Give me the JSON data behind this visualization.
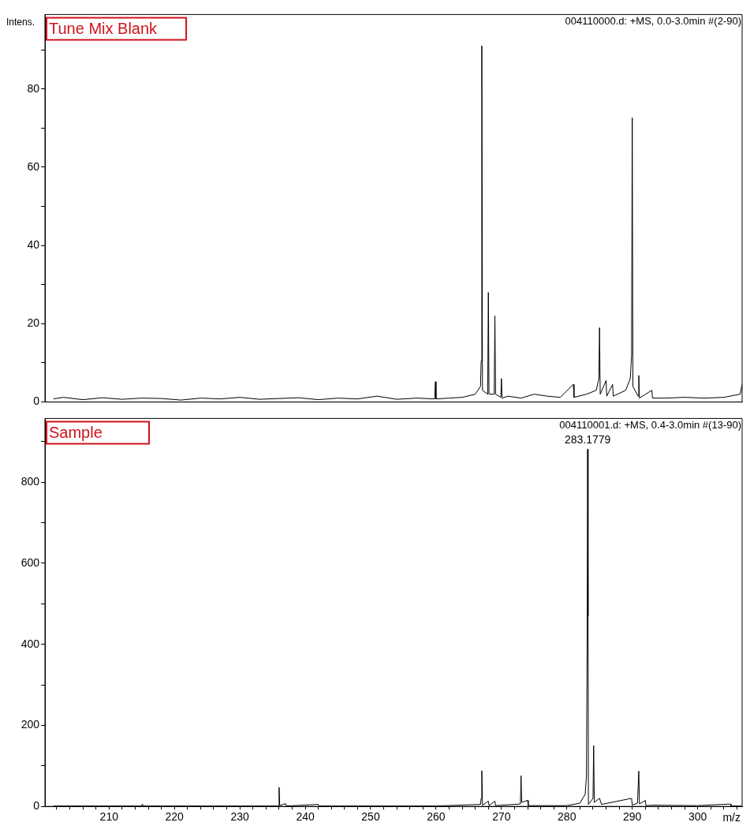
{
  "chart_data": [
    {
      "type": "line",
      "title": "Tune Mix Blank",
      "subtitle": "004110000.d: +MS, 0.0-3.0min #(2-90)",
      "ylabel": "Intens.",
      "xlim": [
        200.2,
        306.8
      ],
      "ylim": [
        0,
        99
      ],
      "yticks": [
        0,
        {
          "value": 10,
          "label": null
        },
        20,
        {
          "value": 30,
          "label": null
        },
        40,
        {
          "value": 50,
          "label": null
        },
        60,
        {
          "value": 70,
          "label": null
        },
        80,
        {
          "value": 90,
          "label": null
        }
      ],
      "tick_labels": "y",
      "legend": false,
      "marker": "none",
      "line_style": "solid",
      "series": [
        {
          "color": "#000000",
          "x": [
            201.5,
            203,
            206,
            209,
            212,
            215,
            218,
            221,
            224,
            227,
            230,
            233,
            236,
            239,
            242,
            245,
            248,
            251,
            254,
            257,
            259.8,
            259.9,
            260.0,
            262,
            264,
            266,
            266.8,
            266.9,
            267.0,
            267.1,
            267.9,
            268.0,
            268.1,
            268.9,
            269.0,
            269.1,
            269.9,
            270.0,
            270.1,
            271,
            273,
            275,
            277,
            279,
            281,
            281.1,
            283,
            284.5,
            284.9,
            285.0,
            285.1,
            286,
            286.1,
            287,
            287.1,
            289,
            289.7,
            289.9,
            290.0,
            290.1,
            290.9,
            291.0,
            291.1,
            293,
            293.1,
            295,
            298,
            301,
            304,
            306.5,
            306.8
          ],
          "values": [
            0.8,
            1.2,
            0.6,
            1.1,
            0.7,
            1.0,
            0.9,
            0.5,
            1.0,
            0.8,
            1.2,
            0.7,
            0.9,
            1.1,
            0.6,
            1.0,
            0.8,
            1.5,
            0.7,
            1.0,
            0.8,
            5.2,
            0.8,
            1.0,
            1.2,
            2,
            4,
            10.5,
            91,
            3,
            2,
            28,
            2,
            2,
            22,
            2,
            1.2,
            6,
            1,
            1.5,
            1.0,
            2.0,
            1.5,
            1.2,
            4.5,
            1.2,
            2,
            3,
            6,
            19,
            2,
            5.5,
            1.5,
            4.5,
            1.5,
            3,
            6,
            12,
            72.6,
            4,
            1.5,
            6.8,
            1,
            3,
            1,
            1,
            1.2,
            1,
            1.2,
            2,
            4.5
          ]
        }
      ]
    },
    {
      "type": "line",
      "title": "Sample",
      "subtitle": "004110001.d: +MS, 0.4-3.0min #(13-90)",
      "xlabel": "m/z",
      "xlim": [
        200.2,
        306.8
      ],
      "ylim": [
        0,
        957
      ],
      "xticks": [
        {
          "value": 202,
          "label": null
        },
        {
          "value": 204,
          "label": null
        },
        {
          "value": 206,
          "label": null
        },
        {
          "value": 208,
          "label": null
        },
        210,
        {
          "value": 212,
          "label": null
        },
        {
          "value": 214,
          "label": null
        },
        {
          "value": 216,
          "label": null
        },
        {
          "value": 218,
          "label": null
        },
        220,
        {
          "value": 222,
          "label": null
        },
        {
          "value": 224,
          "label": null
        },
        {
          "value": 226,
          "label": null
        },
        {
          "value": 228,
          "label": null
        },
        230,
        {
          "value": 232,
          "label": null
        },
        {
          "value": 234,
          "label": null
        },
        {
          "value": 236,
          "label": null
        },
        {
          "value": 238,
          "label": null
        },
        240,
        {
          "value": 242,
          "label": null
        },
        {
          "value": 244,
          "label": null
        },
        {
          "value": 246,
          "label": null
        },
        {
          "value": 248,
          "label": null
        },
        250,
        {
          "value": 252,
          "label": null
        },
        {
          "value": 254,
          "label": null
        },
        {
          "value": 256,
          "label": null
        },
        {
          "value": 258,
          "label": null
        },
        260,
        {
          "value": 262,
          "label": null
        },
        {
          "value": 264,
          "label": null
        },
        {
          "value": 266,
          "label": null
        },
        {
          "value": 268,
          "label": null
        },
        270,
        {
          "value": 272,
          "label": null
        },
        {
          "value": 274,
          "label": null
        },
        {
          "value": 276,
          "label": null
        },
        {
          "value": 278,
          "label": null
        },
        280,
        {
          "value": 282,
          "label": null
        },
        {
          "value": 284,
          "label": null
        },
        {
          "value": 286,
          "label": null
        },
        {
          "value": 288,
          "label": null
        },
        290,
        {
          "value": 292,
          "label": null
        },
        {
          "value": 294,
          "label": null
        },
        {
          "value": 296,
          "label": null
        },
        {
          "value": 298,
          "label": null
        },
        300,
        {
          "value": 302,
          "label": null
        },
        {
          "value": 304,
          "label": null
        },
        {
          "value": 306,
          "label": null
        }
      ],
      "yticks": [
        0,
        {
          "value": 100,
          "label": null
        },
        200,
        {
          "value": 300,
          "label": null
        },
        400,
        {
          "value": 500,
          "label": null
        },
        600,
        {
          "value": 700,
          "label": null
        },
        800,
        {
          "value": 900,
          "label": null
        }
      ],
      "legend": false,
      "marker": "none",
      "line_style": "solid",
      "annotations": [
        {
          "text": "283.1779",
          "x": 283.1779,
          "y": 881
        }
      ],
      "series": [
        {
          "color": "#000000",
          "x": [
            201.5,
            205,
            210,
            215,
            215.1,
            215.2,
            220,
            225,
            230,
            235.9,
            236.0,
            236.1,
            237.0,
            237.1,
            242,
            242.1,
            250,
            260,
            266.8,
            266.9,
            267.0,
            267.1,
            268.0,
            268.1,
            269.0,
            269.1,
            272.9,
            273.0,
            273.1,
            274.0,
            274.1,
            280,
            282,
            282.8,
            283.0,
            283.1,
            283.1779,
            283.25,
            283.3,
            284.0,
            284.1,
            284.2,
            285,
            285.3,
            289.9,
            290,
            290.8,
            291.0,
            291.1,
            292,
            292.1,
            293,
            300,
            305,
            305.1,
            306.8
          ],
          "values": [
            1,
            1,
            1,
            1,
            6,
            1,
            1,
            1,
            1,
            1,
            47,
            2,
            7,
            1,
            5,
            1,
            1,
            1,
            5,
            20,
            88,
            3,
            13,
            2,
            13,
            2,
            6,
            76,
            10,
            15,
            2,
            2,
            8,
            30,
            75,
            390,
            881,
            470,
            5,
            20,
            150,
            10,
            20,
            5,
            20,
            3,
            8,
            87,
            6,
            15,
            2,
            3,
            2,
            6,
            1,
            1
          ]
        }
      ]
    }
  ]
}
